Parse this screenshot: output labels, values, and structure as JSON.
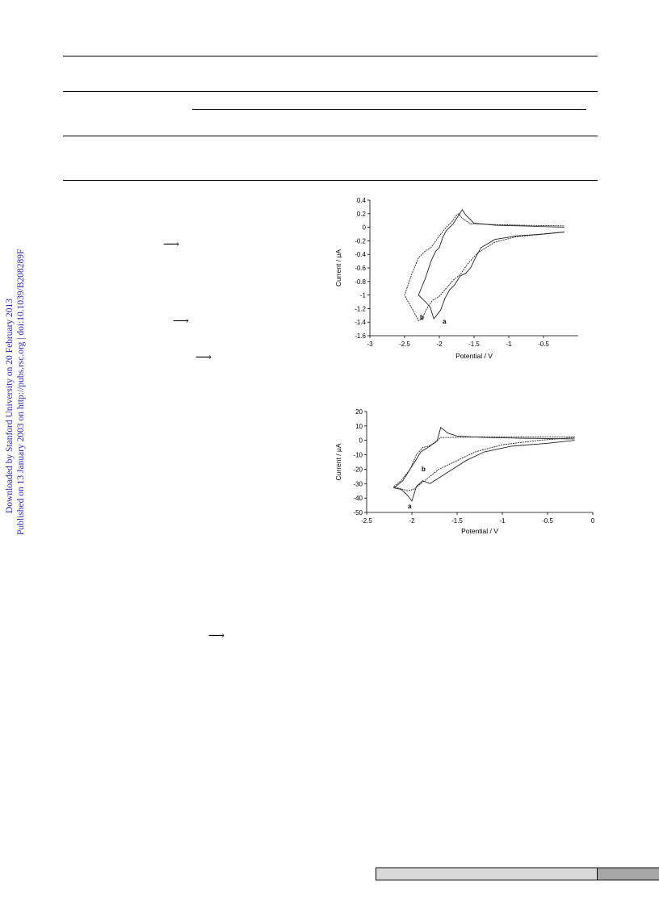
{
  "sidebar": {
    "line1": "Downloaded by Stanford University on 20 February 2013",
    "line2": "Published on 13 January 2003 on http://pubs.rsc.org | doi:10.1039/B208289F"
  },
  "arrows": [
    "⟶",
    "⟶",
    "⟶",
    "⟶"
  ],
  "chart_data": [
    {
      "type": "line",
      "xlabel": "Potential / V",
      "ylabel": "Current / μA",
      "xlim": [
        -3,
        0
      ],
      "ylim": [
        -1.6,
        0.4
      ],
      "xticks": [
        -3,
        -2.5,
        -2,
        -1.5,
        -1,
        -0.5
      ],
      "xtick_labels": [
        "-3",
        "-2.5",
        "-2",
        "-1.5",
        "-1",
        "-0.5"
      ],
      "yticks": [
        0.4,
        0.2,
        0,
        -0.2,
        -0.4,
        -0.6,
        -0.8,
        -1,
        -1.2,
        -1.4,
        -1.6
      ],
      "ytick_labels": [
        "0.4",
        "0.2",
        "0",
        "-0.2",
        "-0.4",
        "-0.6",
        "-0.8",
        "-1",
        "-1.2",
        "-1.4",
        "-1.6"
      ],
      "grid": false,
      "series": [
        {
          "name": "a",
          "x": [
            -0.2,
            -0.5,
            -0.9,
            -1.2,
            -1.4,
            -1.48,
            -1.55,
            -1.62,
            -1.7,
            -1.78,
            -1.85,
            -1.92,
            -1.98,
            -2.04,
            -2.08,
            -2.13,
            -2.2,
            -2.3,
            -2.2,
            -2.12,
            -2.05,
            -2.0,
            -1.95,
            -1.9,
            -1.8,
            -1.72,
            -1.67,
            -1.62,
            -1.5,
            -1.2,
            -0.8,
            -0.2
          ],
          "y": [
            -0.07,
            -0.1,
            -0.13,
            -0.18,
            -0.3,
            -0.45,
            -0.6,
            -0.68,
            -0.72,
            -0.85,
            -0.92,
            -1.05,
            -1.22,
            -1.3,
            -1.35,
            -1.18,
            -1.1,
            -1.0,
            -0.75,
            -0.5,
            -0.35,
            -0.3,
            -0.15,
            -0.05,
            0.05,
            0.18,
            0.26,
            0.18,
            0.06,
            0.03,
            0.02,
            0.0
          ]
        },
        {
          "name": "b",
          "x": [
            -0.2,
            -0.5,
            -0.9,
            -1.2,
            -1.45,
            -1.6,
            -1.7,
            -1.8,
            -1.9,
            -2.0,
            -2.1,
            -2.18,
            -2.25,
            -2.3,
            -2.38,
            -2.45,
            -2.5,
            -2.4,
            -2.3,
            -2.2,
            -2.12,
            -2.05,
            -1.98,
            -1.9,
            -1.82,
            -1.75,
            -1.72,
            -1.68,
            -1.55,
            -1.2,
            -0.8,
            -0.2
          ],
          "y": [
            -0.07,
            -0.1,
            -0.14,
            -0.22,
            -0.38,
            -0.55,
            -0.7,
            -0.78,
            -0.9,
            -1.02,
            -1.08,
            -1.2,
            -1.35,
            -1.38,
            -1.22,
            -1.1,
            -1.0,
            -0.7,
            -0.45,
            -0.35,
            -0.3,
            -0.2,
            -0.1,
            0.0,
            0.08,
            0.18,
            0.2,
            0.14,
            0.05,
            0.04,
            0.03,
            0.02
          ]
        }
      ],
      "annotations": [
        "b",
        "a"
      ]
    },
    {
      "type": "line",
      "xlabel": "Potential / V",
      "ylabel": "Current / μA",
      "xlim": [
        -2.5,
        0
      ],
      "ylim": [
        -50,
        20
      ],
      "xticks": [
        -2.5,
        -2,
        -1.5,
        -1,
        -0.5,
        0
      ],
      "xtick_labels": [
        "-2.5",
        "-2",
        "-1.5",
        "-1",
        "-0.5",
        "0"
      ],
      "yticks": [
        20,
        10,
        0,
        -10,
        -20,
        -30,
        -40,
        -50
      ],
      "ytick_labels": [
        "20",
        "10",
        "0",
        "-10",
        "-20",
        "-30",
        "-40",
        "-50"
      ],
      "grid": false,
      "series": [
        {
          "name": "a",
          "x": [
            -0.2,
            -0.5,
            -0.9,
            -1.2,
            -1.4,
            -1.55,
            -1.7,
            -1.8,
            -1.88,
            -1.95,
            -2.0,
            -2.05,
            -2.12,
            -2.2,
            -2.1,
            -2.0,
            -1.9,
            -1.85,
            -1.8,
            -1.72,
            -1.68,
            -1.6,
            -1.5,
            -1.2,
            -0.8,
            -0.2
          ],
          "y": [
            0,
            -2,
            -4,
            -8,
            -14,
            -20,
            -26,
            -30,
            -28,
            -32,
            -42,
            -38,
            -34,
            -33,
            -28,
            -18,
            -8,
            -6,
            -4,
            0,
            9,
            5,
            3,
            2,
            1.5,
            1
          ]
        },
        {
          "name": "b",
          "x": [
            -0.2,
            -0.6,
            -1.0,
            -1.3,
            -1.5,
            -1.7,
            -1.82,
            -1.9,
            -1.98,
            -2.05,
            -2.15,
            -2.2,
            -2.12,
            -2.02,
            -1.95,
            -1.88,
            -1.82,
            -1.75,
            -1.68,
            -1.55,
            -1.2,
            -0.6,
            -0.2
          ],
          "y": [
            2,
            0,
            -3,
            -8,
            -14,
            -20,
            -26,
            -30,
            -34,
            -35,
            -33,
            -32,
            -28,
            -20,
            -10,
            -5,
            -4,
            -2,
            2,
            2,
            2.5,
            2.5,
            2.5
          ]
        }
      ],
      "annotations": [
        "b",
        "a"
      ]
    }
  ]
}
